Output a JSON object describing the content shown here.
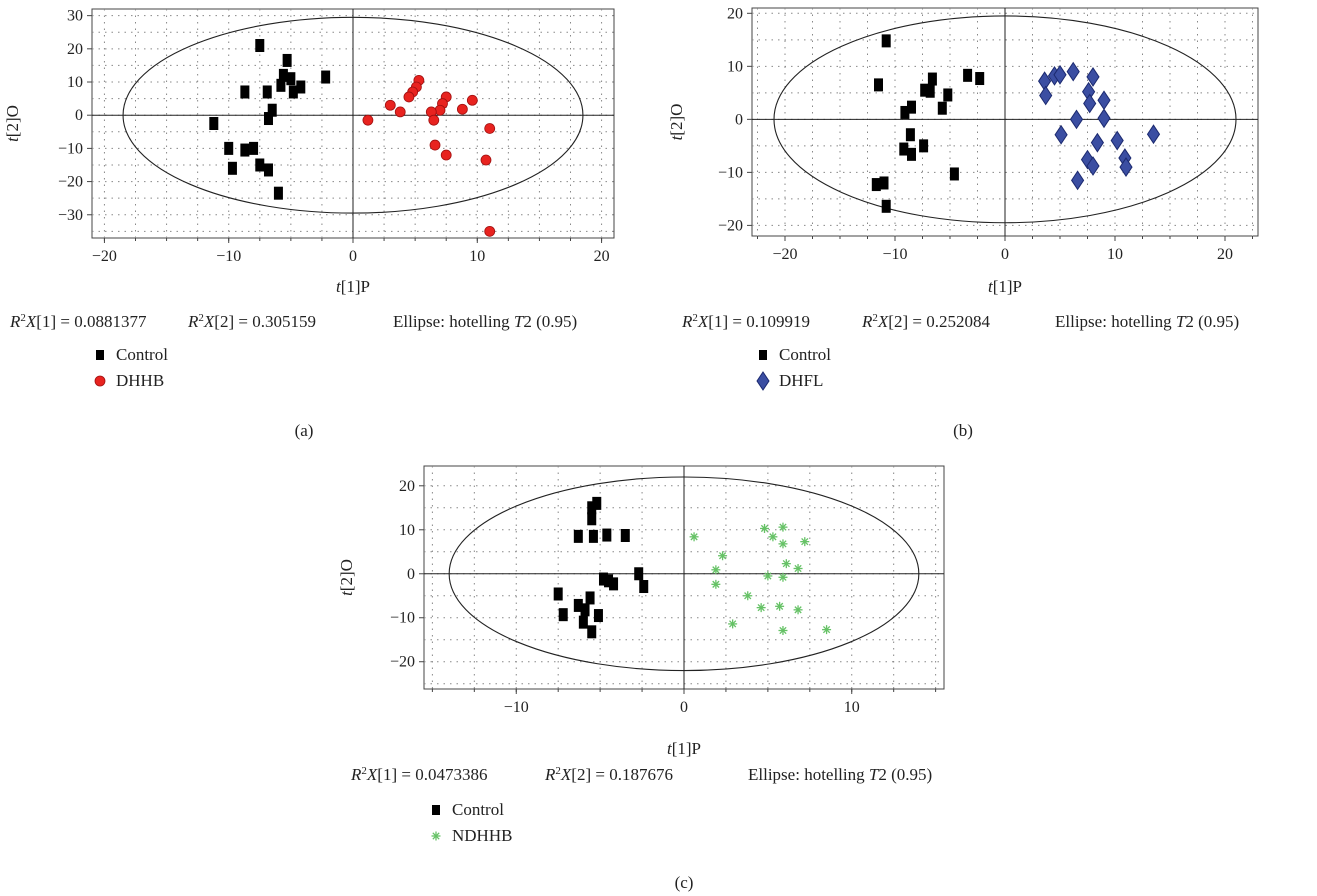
{
  "chart_data": [
    {
      "panel_label": "(a)",
      "type": "scatter",
      "xlabel": "t[1]P",
      "ylabel": "t[2]O",
      "xlim": [
        -21,
        21
      ],
      "ylim": [
        -37,
        32
      ],
      "xticks": [
        -20,
        -10,
        0,
        10,
        20
      ],
      "yticks": [
        -30,
        -20,
        -10,
        0,
        10,
        20,
        30
      ],
      "grid": true,
      "ellipse": {
        "rx": 18.5,
        "ry": 29.5
      },
      "stats": {
        "r2x1_label": "R²X[1]",
        "r2x1": "0.0881377",
        "r2x2_label": "R²X[2]",
        "r2x2": "0.305159",
        "ellipse_text": "Ellipse: hotelling T2 (0.95)"
      },
      "legend_position": "bottom-left",
      "series": [
        {
          "name": "Control",
          "marker": "square",
          "color": "#000000",
          "points": [
            [
              -7.5,
              21
            ],
            [
              -5.3,
              16.5
            ],
            [
              -5.6,
              12
            ],
            [
              -5,
              11
            ],
            [
              -2.2,
              11.5
            ],
            [
              -5.8,
              9
            ],
            [
              -4.2,
              8.5
            ],
            [
              -4.8,
              7
            ],
            [
              -6.9,
              7
            ],
            [
              -8.7,
              7
            ],
            [
              -6.5,
              1.5
            ],
            [
              -6.8,
              -1
            ],
            [
              -11.2,
              -2.5
            ],
            [
              -10,
              -10
            ],
            [
              -8,
              -10
            ],
            [
              -8.7,
              -10.5
            ],
            [
              -9.7,
              -16
            ],
            [
              -7.5,
              -15
            ],
            [
              -6.8,
              -16.5
            ],
            [
              -6,
              -23.5
            ]
          ]
        },
        {
          "name": "DHHB",
          "marker": "circle",
          "color": "#e8231f",
          "points": [
            [
              5.3,
              10.5
            ],
            [
              5.1,
              8.5
            ],
            [
              4.8,
              7
            ],
            [
              4.5,
              5.5
            ],
            [
              7.5,
              5.5
            ],
            [
              9.6,
              4.5
            ],
            [
              7.2,
              3.5
            ],
            [
              3,
              3
            ],
            [
              8.8,
              1.8
            ],
            [
              7,
              1.5
            ],
            [
              6.3,
              1
            ],
            [
              3.8,
              1
            ],
            [
              1.2,
              -1.5
            ],
            [
              6.5,
              -1.5
            ],
            [
              11,
              -4
            ],
            [
              6.6,
              -9
            ],
            [
              7.5,
              -12
            ],
            [
              10.7,
              -13.5
            ],
            [
              11,
              -35
            ]
          ]
        }
      ]
    },
    {
      "panel_label": "(b)",
      "type": "scatter",
      "xlabel": "t[1]P",
      "ylabel": "t[2]O",
      "xlim": [
        -23,
        23
      ],
      "ylim": [
        -22,
        21
      ],
      "xticks": [
        -20,
        -10,
        0,
        10,
        20
      ],
      "yticks": [
        -20,
        -10,
        0,
        10,
        20
      ],
      "grid": true,
      "ellipse": {
        "rx": 21,
        "ry": 19.5
      },
      "stats": {
        "r2x1_label": "R²X[1]",
        "r2x1": "0.109919",
        "r2x2_label": "R²X[2]",
        "r2x2": "0.252084",
        "ellipse_text": "Ellipse: hotelling T2 (0.95)"
      },
      "legend_position": "bottom-left",
      "series": [
        {
          "name": "Control",
          "marker": "square",
          "color": "#000000",
          "points": [
            [
              -10.8,
              14.8
            ],
            [
              -11.5,
              6.5
            ],
            [
              -3.4,
              8.3
            ],
            [
              -2.3,
              7.7
            ],
            [
              -6.6,
              7.6
            ],
            [
              -6.8,
              5.3
            ],
            [
              -7.3,
              5.5
            ],
            [
              -5.2,
              4.6
            ],
            [
              -8.5,
              2.3
            ],
            [
              -9.1,
              1.3
            ],
            [
              -5.7,
              2.1
            ],
            [
              -8.6,
              -2.9
            ],
            [
              -9.2,
              -5.6
            ],
            [
              -7.4,
              -5
            ],
            [
              -8.5,
              -6.6
            ],
            [
              -4.6,
              -10.3
            ],
            [
              -11,
              -12
            ],
            [
              -11.7,
              -12.3
            ],
            [
              -10.8,
              -16.4
            ]
          ]
        },
        {
          "name": "DHFL",
          "marker": "diamond",
          "color": "#3b4ea2",
          "points": [
            [
              4.5,
              8.2
            ],
            [
              5,
              8.4
            ],
            [
              6.2,
              9
            ],
            [
              8,
              8
            ],
            [
              3.6,
              7.2
            ],
            [
              7.6,
              5.2
            ],
            [
              3.7,
              4.5
            ],
            [
              7.7,
              3
            ],
            [
              9,
              3.6
            ],
            [
              6.5,
              0
            ],
            [
              9,
              0.2
            ],
            [
              5.1,
              -2.9
            ],
            [
              10.2,
              -4
            ],
            [
              8.4,
              -4.4
            ],
            [
              13.5,
              -2.8
            ],
            [
              10.9,
              -7.3
            ],
            [
              7.5,
              -7.6
            ],
            [
              8,
              -8.8
            ],
            [
              11,
              -9
            ],
            [
              6.6,
              -11.5
            ]
          ]
        }
      ]
    },
    {
      "panel_label": "(c)",
      "type": "scatter",
      "xlabel": "t[1]P",
      "ylabel": "t[2]O",
      "xlim": [
        -15.5,
        15.5
      ],
      "ylim": [
        -26.2,
        24.5
      ],
      "xticks": [
        -10,
        0,
        10
      ],
      "yticks": [
        -20,
        -10,
        0,
        10,
        20
      ],
      "grid": true,
      "ellipse": {
        "rx": 14,
        "ry": 22
      },
      "stats": {
        "r2x1_label": "R²X[1]",
        "r2x1": "0.0473386",
        "r2x2_label": "R²X[2]",
        "r2x2": "0.187676",
        "ellipse_text": "Ellipse: hotelling T2 (0.95)"
      },
      "legend_position": "bottom-left",
      "series": [
        {
          "name": "Control",
          "marker": "square",
          "color": "#000000",
          "points": [
            [
              -5.2,
              16
            ],
            [
              -5.5,
              15
            ],
            [
              -5.5,
              12.5
            ],
            [
              -6.3,
              8.5
            ],
            [
              -5.4,
              8.5
            ],
            [
              -4.6,
              8.8
            ],
            [
              -3.5,
              8.7
            ],
            [
              -2.7,
              0
            ],
            [
              -2.4,
              -2.9
            ],
            [
              -4.8,
              -1.2
            ],
            [
              -4.5,
              -1.6
            ],
            [
              -4.2,
              -2.3
            ],
            [
              -7.5,
              -4.6
            ],
            [
              -5.6,
              -5.5
            ],
            [
              -6.3,
              -7.2
            ],
            [
              -5.9,
              -8.2
            ],
            [
              -7.2,
              -9.3
            ],
            [
              -5.1,
              -9.5
            ],
            [
              -6,
              -11
            ],
            [
              -5.5,
              -13.2
            ]
          ]
        },
        {
          "name": "NDHHB",
          "marker": "asterisk",
          "color": "#66c266",
          "points": [
            [
              0.6,
              8.4
            ],
            [
              4.8,
              10.3
            ],
            [
              5.9,
              10.6
            ],
            [
              5.3,
              8.4
            ],
            [
              5.9,
              6.8
            ],
            [
              7.2,
              7.3
            ],
            [
              2.3,
              4.1
            ],
            [
              1.9,
              0.9
            ],
            [
              6.1,
              2.3
            ],
            [
              6.8,
              1.2
            ],
            [
              5,
              -0.5
            ],
            [
              5.9,
              -0.8
            ],
            [
              1.9,
              -2.4
            ],
            [
              3.8,
              -5
            ],
            [
              4.6,
              -7.7
            ],
            [
              5.7,
              -7.4
            ],
            [
              6.8,
              -8.2
            ],
            [
              2.9,
              -11.4
            ],
            [
              5.9,
              -12.9
            ],
            [
              8.5,
              -12.7
            ]
          ]
        }
      ]
    }
  ]
}
